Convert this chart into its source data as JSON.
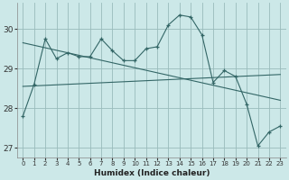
{
  "xlabel": "Humidex (Indice chaleur)",
  "bg_color": "#cce8e8",
  "grid_color": "#99bbbb",
  "line_color": "#336666",
  "x_values": [
    0,
    1,
    2,
    3,
    4,
    5,
    6,
    7,
    8,
    9,
    10,
    11,
    12,
    13,
    14,
    15,
    16,
    17,
    18,
    19,
    20,
    21,
    22,
    23
  ],
  "y_main": [
    27.8,
    28.6,
    29.75,
    29.25,
    29.4,
    29.3,
    29.3,
    29.75,
    29.45,
    29.2,
    29.2,
    29.5,
    29.55,
    30.1,
    30.35,
    30.3,
    29.85,
    28.65,
    28.95,
    28.8,
    28.1,
    27.05,
    27.4,
    27.55
  ],
  "trend1_x": [
    0,
    23
  ],
  "trend1_y": [
    29.65,
    28.2
  ],
  "trend2_x": [
    0,
    23
  ],
  "trend2_y": [
    28.55,
    28.85
  ],
  "ylim": [
    26.75,
    30.65
  ],
  "yticks": [
    27,
    28,
    29,
    30
  ],
  "xlim": [
    -0.5,
    23.5
  ]
}
